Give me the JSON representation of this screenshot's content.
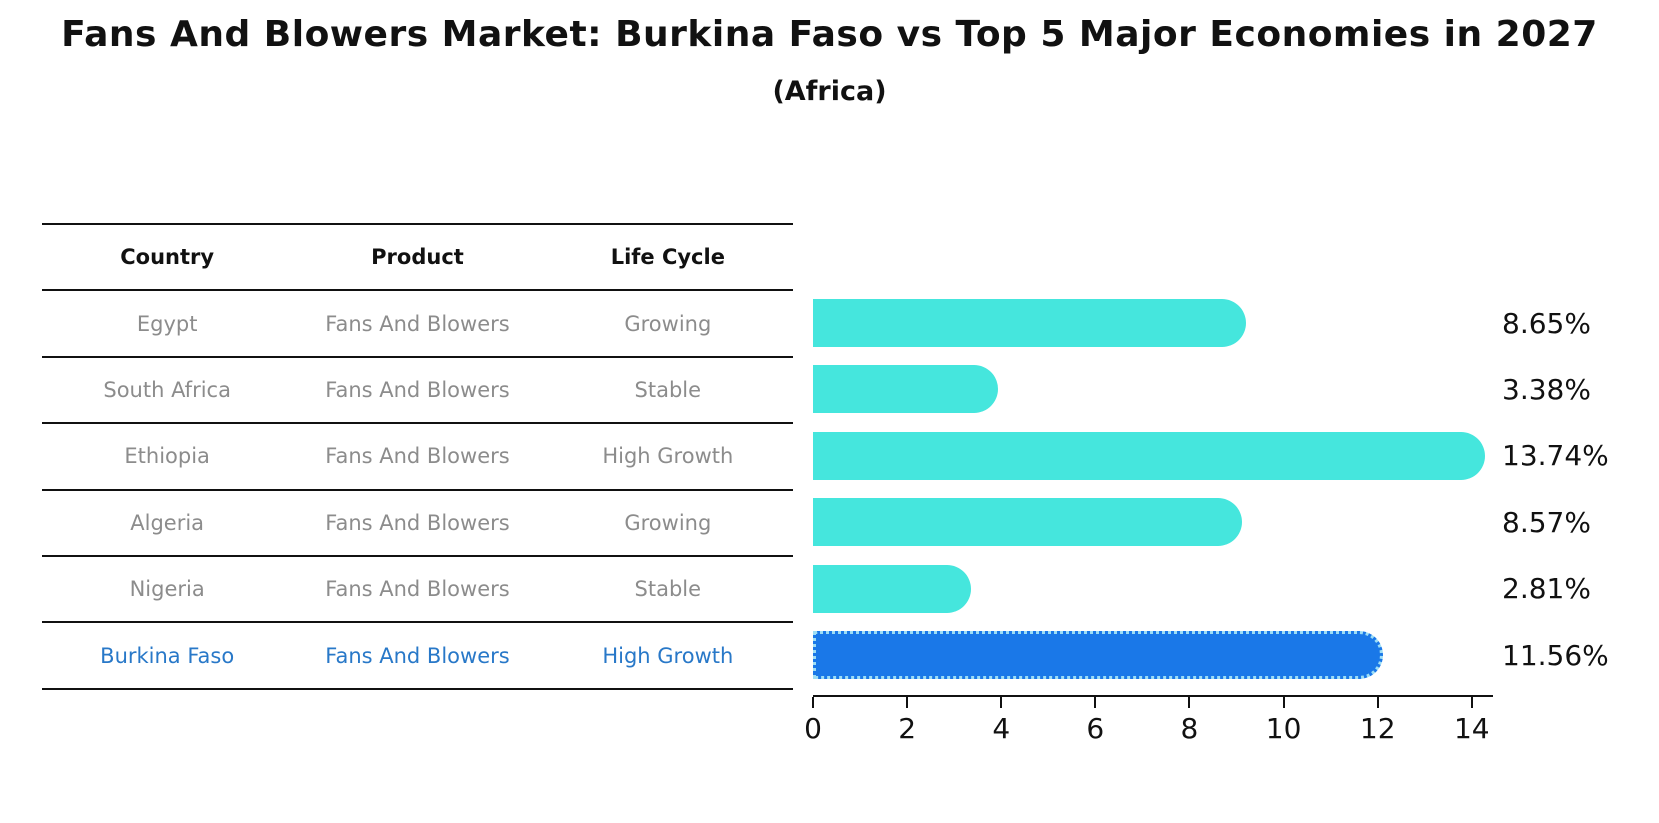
{
  "title": "Fans And Blowers Market: Burkina Faso vs Top 5 Major Economies in 2027",
  "subtitle": "(Africa)",
  "table": {
    "headers": [
      "Country",
      "Product",
      "Life Cycle"
    ],
    "rows": [
      {
        "country": "Egypt",
        "product": "Fans And Blowers",
        "life_cycle": "Growing",
        "highlight": false
      },
      {
        "country": "South Africa",
        "product": "Fans And Blowers",
        "life_cycle": "Stable",
        "highlight": false
      },
      {
        "country": "Ethiopia",
        "product": "Fans And Blowers",
        "life_cycle": "High Growth",
        "highlight": false
      },
      {
        "country": "Algeria",
        "product": "Fans And Blowers",
        "life_cycle": "Growing",
        "highlight": false
      },
      {
        "country": "Nigeria",
        "product": "Fans And Blowers",
        "life_cycle": "Stable",
        "highlight": false
      },
      {
        "country": "Burkina Faso",
        "product": "Fans And Blowers",
        "life_cycle": "High Growth",
        "highlight": true
      }
    ]
  },
  "chart_data": {
    "type": "bar",
    "orientation": "horizontal",
    "title": "Fans And Blowers Market: Burkina Faso vs Top 5 Major Economies in 2027",
    "subtitle": "(Africa)",
    "categories": [
      "Egypt",
      "South Africa",
      "Ethiopia",
      "Algeria",
      "Nigeria",
      "Burkina Faso"
    ],
    "values": [
      8.65,
      3.38,
      13.74,
      8.57,
      2.81,
      11.56
    ],
    "value_labels": [
      "8.65%",
      "3.38%",
      "13.74%",
      "8.57%",
      "2.81%",
      "11.56%"
    ],
    "xlim": [
      0,
      14.45
    ],
    "x_ticks": [
      0,
      2,
      4,
      6,
      8,
      10,
      12,
      14
    ],
    "grid": false,
    "legend": false,
    "highlight_index": 5,
    "cap_overhang_units": 0.55
  },
  "colors": {
    "bar": "#45E6DD",
    "highlight_bar": "#1A78E8",
    "highlight_border": "#9EDEF5",
    "highlight_text": "#2878C8",
    "table_text": "#8C8C8C",
    "line": "#111111"
  }
}
